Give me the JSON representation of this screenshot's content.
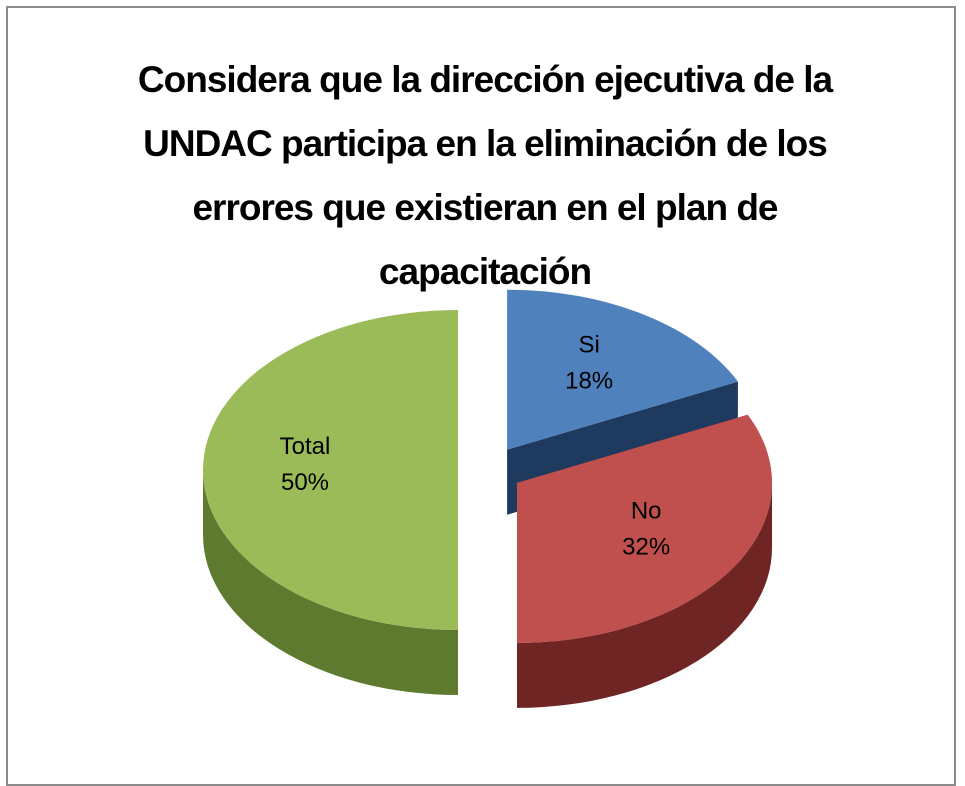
{
  "chart_data": {
    "type": "pie3d",
    "title": "Considera que la dirección ejecutiva de la UNDAC participa en la eliminación de los errores que existieran en el plan de capacitación",
    "categories": [
      "Si",
      "No",
      "Total"
    ],
    "values": [
      18,
      32,
      50
    ],
    "value_labels": [
      "18%",
      "32%",
      "50%"
    ],
    "colors": [
      "#4f81bd",
      "#c0504d",
      "#9bbb59"
    ],
    "side_colors": [
      "#1f3a5f",
      "#6e2523",
      "#5e7a2e"
    ]
  }
}
